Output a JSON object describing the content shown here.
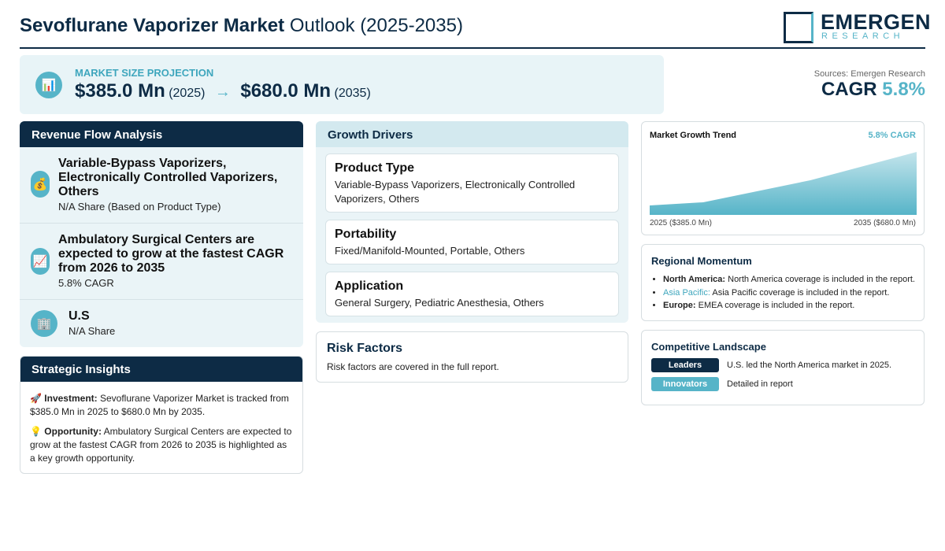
{
  "header": {
    "title_bold": "Sevoflurane Vaporizer Market",
    "title_rest": "Outlook (2025-2035)",
    "logo_name": "EMERGEN",
    "logo_sub": "RESEARCH"
  },
  "projection": {
    "icon": "📊",
    "label": "MARKET SIZE PROJECTION",
    "start_value": "$385.0 Mn",
    "start_year": "(2025)",
    "arrow": "→",
    "end_value": "$680.0 Mn",
    "end_year": "(2035)"
  },
  "summary": {
    "sources": "Sources: Emergen Research",
    "cagr_label": "CAGR",
    "cagr_value": "5.8%"
  },
  "revenue_flow": {
    "title": "Revenue Flow Analysis",
    "items": [
      {
        "icon": "💰",
        "title": "Variable-Bypass Vaporizers, Electronically Controlled Vaporizers, Others",
        "subtitle": "N/A Share (Based on Product Type)"
      },
      {
        "icon": "📈",
        "title": "Ambulatory Surgical Centers are expected to grow at the fastest CAGR from 2026 to 2035",
        "subtitle": "5.8% CAGR"
      },
      {
        "icon": "🏢",
        "title": "U.S",
        "subtitle": "N/A Share"
      }
    ]
  },
  "strategic_insights": {
    "title": "Strategic Insights",
    "items": [
      {
        "icon": "🚀",
        "label": "Investment:",
        "text": "Sevoflurane Vaporizer Market is tracked from $385.0 Mn in 2025 to $680.0 Mn by 2035."
      },
      {
        "icon": "💡",
        "label": "Opportunity:",
        "text": "Ambulatory Surgical Centers are expected to grow at the fastest CAGR from 2026 to 2035 is highlighted as a key growth opportunity."
      }
    ]
  },
  "growth_drivers": {
    "title": "Growth Drivers",
    "items": [
      {
        "title": "Product Type",
        "text": "Variable-Bypass Vaporizers, Electronically Controlled Vaporizers, Others"
      },
      {
        "title": "Portability",
        "text": "Fixed/Manifold-Mounted, Portable, Others"
      },
      {
        "title": "Application",
        "text": "General Surgery, Pediatric Anesthesia, Others"
      }
    ]
  },
  "risk_factors": {
    "title": "Risk Factors",
    "text": "Risk factors are covered in the full report."
  },
  "market_growth_trend": {
    "title": "Market Growth Trend",
    "badge": "5.8% CAGR",
    "start_label": "2025 ($385.0 Mn)",
    "end_label": "2035 ($680.0 Mn)"
  },
  "regional_momentum": {
    "title": "Regional Momentum",
    "items": [
      {
        "label": "North America:",
        "text": "North America coverage is included in the report."
      },
      {
        "label": "Asia Pacific:",
        "text": "Asia Pacific coverage is included in the report."
      },
      {
        "label": "Europe:",
        "text": "EMEA coverage is included in the report."
      }
    ]
  },
  "competitive_landscape": {
    "title": "Competitive Landscape",
    "items": [
      {
        "badge": "Leaders",
        "text": "U.S. led the North America market in 2025."
      },
      {
        "badge": "Innovators",
        "text": "Detailed in report"
      }
    ]
  }
}
